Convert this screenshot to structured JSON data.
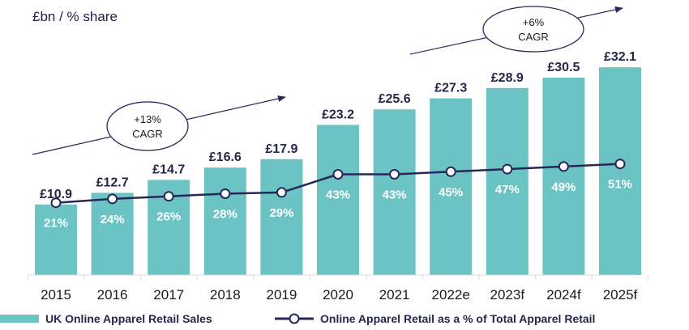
{
  "chart_data": {
    "type": "bar",
    "unit_label": "£bn / % share",
    "categories": [
      "2015",
      "2016",
      "2017",
      "2018",
      "2019",
      "2020",
      "2021",
      "2022e",
      "2023f",
      "2024f",
      "2025f"
    ],
    "series": [
      {
        "name": "UK Online Apparel Retail Sales",
        "type": "bar",
        "values": [
          10.9,
          12.7,
          14.7,
          16.6,
          17.9,
          23.2,
          25.6,
          27.3,
          28.9,
          30.5,
          32.1
        ],
        "labels": [
          "£10.9",
          "£12.7",
          "£14.7",
          "£16.6",
          "£17.9",
          "£23.2",
          "£25.6",
          "£27.3",
          "£28.9",
          "£30.5",
          "£32.1"
        ],
        "color": "#6cc3c4"
      },
      {
        "name": "Online Apparel Retail as a % of Total Apparel Retail",
        "type": "line",
        "values": [
          21,
          24,
          26,
          28,
          29,
          43,
          43,
          45,
          47,
          49,
          51
        ],
        "labels": [
          "21%",
          "24%",
          "26%",
          "28%",
          "29%",
          "43%",
          "43%",
          "45%",
          "47%",
          "49%",
          "51%"
        ],
        "color": "#27275a"
      }
    ],
    "annotations": [
      {
        "line1": "+13%",
        "line2": "CAGR",
        "span": [
          "2015",
          "2019"
        ]
      },
      {
        "line1": "+6%",
        "line2": "CAGR",
        "span": [
          "2020",
          "2025f"
        ]
      }
    ],
    "legend_position": "bottom",
    "grid": false
  }
}
